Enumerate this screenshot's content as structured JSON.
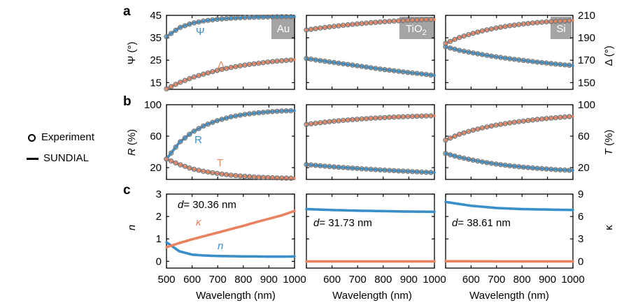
{
  "colors": {
    "blue": "#3b8fc9",
    "orange": "#e8825f",
    "marker": "#7a7a7a",
    "badge": "#a4a4a4"
  },
  "legend": {
    "experiment": "Experiment",
    "model": "SUNDIAL"
  },
  "panel_labels": {
    "a": "a",
    "b": "b",
    "c": "c"
  },
  "materials": {
    "au": "Au",
    "tio2_base": "TiO",
    "tio2_sub": "2",
    "si": "Si"
  },
  "axes": {
    "psi_label": "Ψ (°)",
    "delta_label": "Δ (°)",
    "R_label_italic": "R",
    "R_label_rest": " (%)",
    "T_label_italic": "T",
    "T_label_rest": " (%)",
    "n_label": "n",
    "kappa_label": "κ",
    "xlabel": "Wavelength (nm)",
    "psi_ticks": [
      "45",
      "35",
      "25",
      "15"
    ],
    "delta_ticks": [
      "210",
      "190",
      "170",
      "150"
    ],
    "R_ticks": [
      "100",
      "60",
      "20"
    ],
    "T_ticks": [
      "100",
      "60",
      "20"
    ],
    "n_ticks": [
      "3",
      "2",
      "1",
      "0"
    ],
    "kappa_ticks": [
      "9",
      "6",
      "3",
      "0"
    ],
    "x_ticks_first": [
      "500",
      "600",
      "700",
      "800",
      "900",
      "1000"
    ],
    "x_ticks_other": [
      "600",
      "700",
      "800",
      "900",
      "1000"
    ]
  },
  "annotations": {
    "psi": "Ψ",
    "delta": "Δ",
    "R": "R",
    "T": "T",
    "n": "n",
    "kappa": "κ",
    "d_au": "= 30.36 nm",
    "d_tio2": "= 31.73 nm",
    "d_si": "= 38.61 nm",
    "d_symbol": "d"
  },
  "chart_data": [
    {
      "type": "line",
      "panel": "a",
      "material": "Au",
      "xlabel": "",
      "ylabel_left": "Ψ (°)",
      "ylabel_right": "Δ (°)",
      "xlim": [
        500,
        1000
      ],
      "ylim_left": [
        12,
        45
      ],
      "ylim_right": [
        144,
        210
      ],
      "x": [
        500,
        550,
        600,
        650,
        700,
        750,
        800,
        850,
        900,
        950,
        1000
      ],
      "series": [
        {
          "name": "Ψ",
          "axis": "left",
          "values": [
            35.5,
            39.5,
            41.5,
            42.6,
            43.3,
            43.7,
            44.0,
            44.2,
            44.3,
            44.4,
            44.4
          ]
        },
        {
          "name": "Δ",
          "axis": "right",
          "values": [
            144.5,
            150,
            154.5,
            158,
            161,
            163.5,
            165.5,
            167,
            168.5,
            169.5,
            170.5
          ]
        }
      ]
    },
    {
      "type": "line",
      "panel": "a",
      "material": "TiO2",
      "xlim": [
        500,
        1000
      ],
      "ylim_left": [
        12,
        45
      ],
      "ylim_right": [
        144,
        210
      ],
      "x": [
        500,
        550,
        600,
        650,
        700,
        750,
        800,
        850,
        900,
        950,
        1000
      ],
      "series": [
        {
          "name": "Ψ",
          "axis": "left",
          "values": [
            25.8,
            24.9,
            24.1,
            23.3,
            22.5,
            21.7,
            20.9,
            20.2,
            19.5,
            18.9,
            18.2
          ]
        },
        {
          "name": "Δ",
          "axis": "right",
          "values": [
            197,
            198.6,
            200,
            201.3,
            202.4,
            203.4,
            204.3,
            205,
            205.6,
            206.1,
            206.4
          ]
        }
      ]
    },
    {
      "type": "line",
      "panel": "a",
      "material": "Si",
      "xlim": [
        500,
        1000
      ],
      "ylim_left": [
        12,
        45
      ],
      "ylim_right": [
        144,
        210
      ],
      "x": [
        500,
        550,
        600,
        650,
        700,
        750,
        800,
        850,
        900,
        950,
        1000
      ],
      "series": [
        {
          "name": "Ψ",
          "axis": "left",
          "values": [
            31,
            29.5,
            28.4,
            27.4,
            26.5,
            25.7,
            25,
            24.3,
            23.7,
            23.1,
            22.6
          ]
        },
        {
          "name": "Δ",
          "axis": "right",
          "values": [
            185,
            190,
            193.5,
            196.5,
            198.8,
            200.7,
            202.2,
            203.4,
            204.3,
            204.9,
            205.4
          ]
        }
      ]
    },
    {
      "type": "line",
      "panel": "b",
      "material": "Au",
      "ylabel_left": "R (%)",
      "ylabel_right": "T (%)",
      "xlim": [
        500,
        1000
      ],
      "ylim": [
        5,
        100
      ],
      "x": [
        500,
        550,
        600,
        650,
        700,
        750,
        800,
        850,
        900,
        950,
        1000
      ],
      "series": [
        {
          "name": "R",
          "values": [
            31,
            52,
            65,
            74,
            80,
            84.5,
            87.5,
            89.5,
            91,
            92,
            92.5
          ]
        },
        {
          "name": "T",
          "values": [
            31,
            24,
            18.5,
            15,
            12.5,
            10.5,
            9,
            8,
            7.3,
            6.8,
            6.5
          ]
        }
      ]
    },
    {
      "type": "line",
      "panel": "b",
      "material": "TiO2",
      "xlim": [
        500,
        1000
      ],
      "ylim": [
        5,
        100
      ],
      "x": [
        500,
        550,
        600,
        650,
        700,
        750,
        800,
        850,
        900,
        950,
        1000
      ],
      "series": [
        {
          "name": "R",
          "values": [
            24,
            22.5,
            21.2,
            20,
            18.9,
            17.9,
            16.9,
            16,
            15.2,
            14.4,
            13.7
          ]
        },
        {
          "name": "T",
          "values": [
            75,
            77,
            78.8,
            80.3,
            81.6,
            82.7,
            83.6,
            84.4,
            85,
            85.5,
            86
          ]
        }
      ]
    },
    {
      "type": "line",
      "panel": "b",
      "material": "Si",
      "xlim": [
        500,
        1000
      ],
      "ylim": [
        5,
        100
      ],
      "x": [
        500,
        550,
        600,
        650,
        700,
        750,
        800,
        850,
        900,
        950,
        1000
      ],
      "series": [
        {
          "name": "R",
          "values": [
            38,
            33.5,
            30,
            27,
            24.5,
            22.5,
            20.8,
            19.4,
            18.2,
            17.2,
            16.4
          ]
        },
        {
          "name": "T",
          "values": [
            55,
            62,
            67,
            71,
            74.2,
            76.8,
            79,
            81,
            82.6,
            84,
            85.2
          ]
        }
      ]
    },
    {
      "type": "line",
      "panel": "c",
      "material": "Au",
      "xlabel": "Wavelength (nm)",
      "ylabel_left": "n",
      "ylabel_right": "κ",
      "xlim": [
        500,
        1000
      ],
      "ylim_left": [
        -0.3,
        3
      ],
      "ylim_right": [
        -0.9,
        9
      ],
      "x": [
        500,
        550,
        600,
        650,
        700,
        750,
        800,
        850,
        900,
        950,
        1000
      ],
      "series": [
        {
          "name": "n",
          "axis": "left",
          "values": [
            0.85,
            0.45,
            0.3,
            0.26,
            0.24,
            0.23,
            0.22,
            0.22,
            0.21,
            0.21,
            0.22
          ]
        },
        {
          "name": "κ",
          "axis": "right",
          "values": [
            1.9,
            2.45,
            2.95,
            3.4,
            3.85,
            4.3,
            4.75,
            5.25,
            5.7,
            6.15,
            6.75
          ]
        }
      ]
    },
    {
      "type": "line",
      "panel": "c",
      "material": "TiO2",
      "xlim": [
        500,
        1000
      ],
      "ylim_left": [
        -0.3,
        3
      ],
      "ylim_right": [
        -0.9,
        9
      ],
      "x": [
        500,
        600,
        700,
        800,
        900,
        1000
      ],
      "series": [
        {
          "name": "n",
          "axis": "left",
          "values": [
            2.33,
            2.29,
            2.26,
            2.24,
            2.22,
            2.21
          ]
        },
        {
          "name": "κ",
          "axis": "right",
          "values": [
            0,
            0,
            0,
            0,
            0,
            0
          ]
        }
      ]
    },
    {
      "type": "line",
      "panel": "c",
      "material": "Si",
      "xlim": [
        500,
        1000
      ],
      "ylim_left": [
        -0.3,
        3
      ],
      "ylim_right": [
        -0.9,
        9
      ],
      "x": [
        500,
        600,
        700,
        800,
        900,
        1000
      ],
      "series": [
        {
          "name": "n",
          "axis": "left",
          "values": [
            2.65,
            2.48,
            2.38,
            2.33,
            2.31,
            2.29
          ]
        },
        {
          "name": "κ",
          "axis": "right",
          "values": [
            0.02,
            0.01,
            0,
            0,
            0,
            0
          ]
        }
      ]
    }
  ]
}
